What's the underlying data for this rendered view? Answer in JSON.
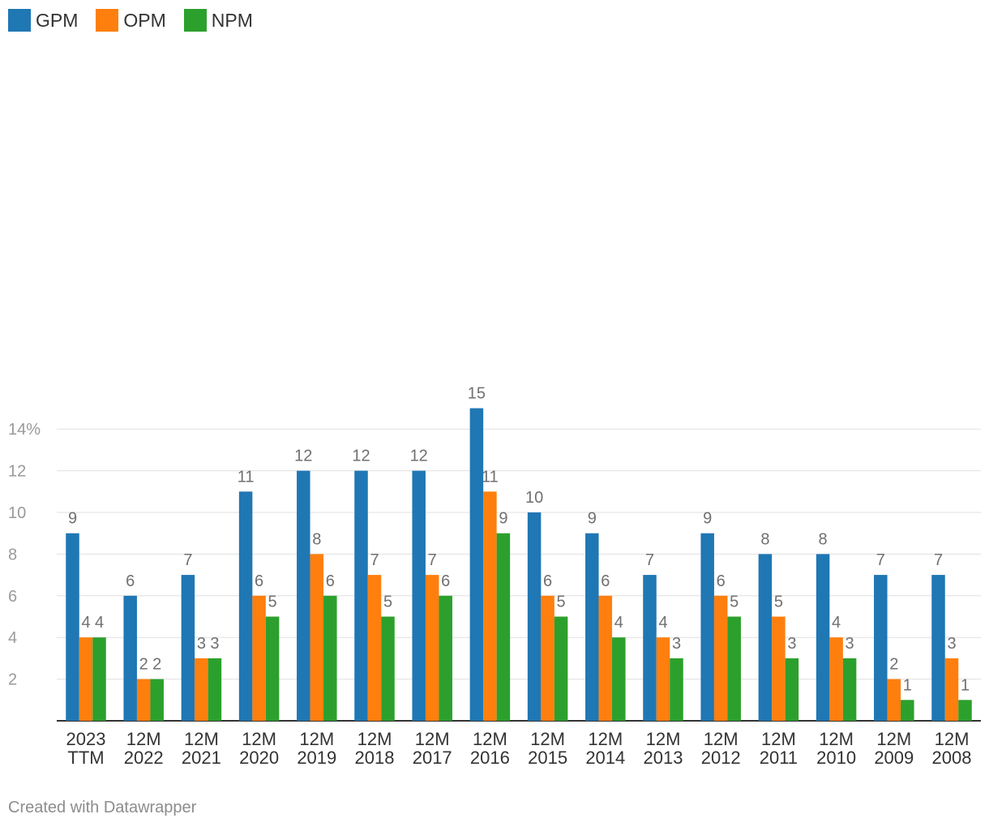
{
  "legend": [
    {
      "name": "GPM",
      "color": "#1f77b4"
    },
    {
      "name": "OPM",
      "color": "#ff7f0e"
    },
    {
      "name": "NPM",
      "color": "#2ca02c"
    }
  ],
  "footer": {
    "credit": "Created with Datawrapper"
  },
  "chart_data": {
    "type": "bar",
    "title": "",
    "xlabel": "",
    "ylabel": "",
    "ylim": [
      0,
      16
    ],
    "yticks": [
      2,
      4,
      6,
      8,
      10,
      12,
      14
    ],
    "ytick_labels": [
      "2",
      "4",
      "6",
      "8",
      "10",
      "12",
      "14%"
    ],
    "grid": true,
    "legend_position": "top-left",
    "categories": [
      [
        "2023",
        "TTM"
      ],
      [
        "12M",
        "2022"
      ],
      [
        "12M",
        "2021"
      ],
      [
        "12M",
        "2020"
      ],
      [
        "12M",
        "2019"
      ],
      [
        "12M",
        "2018"
      ],
      [
        "12M",
        "2017"
      ],
      [
        "12M",
        "2016"
      ],
      [
        "12M",
        "2015"
      ],
      [
        "12M",
        "2014"
      ],
      [
        "12M",
        "2013"
      ],
      [
        "12M",
        "2012"
      ],
      [
        "12M",
        "2011"
      ],
      [
        "12M",
        "2010"
      ],
      [
        "12M",
        "2009"
      ],
      [
        "12M",
        "2008"
      ]
    ],
    "series": [
      {
        "name": "GPM",
        "color": "#1f77b4",
        "values": [
          9,
          6,
          7,
          11,
          12,
          12,
          12,
          15,
          10,
          9,
          7,
          9,
          8,
          8,
          7,
          7
        ]
      },
      {
        "name": "OPM",
        "color": "#ff7f0e",
        "values": [
          4,
          2,
          3,
          6,
          8,
          7,
          7,
          11,
          6,
          6,
          4,
          6,
          5,
          4,
          2,
          3
        ]
      },
      {
        "name": "NPM",
        "color": "#2ca02c",
        "values": [
          4,
          2,
          3,
          5,
          6,
          5,
          6,
          9,
          5,
          4,
          3,
          5,
          3,
          3,
          1,
          1
        ]
      }
    ]
  }
}
